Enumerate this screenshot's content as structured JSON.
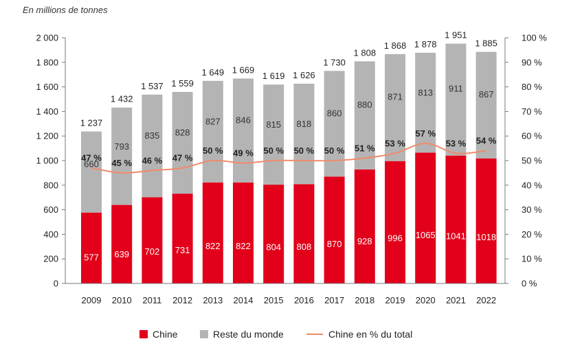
{
  "chart_data": {
    "type": "bar",
    "subtitle": "En millions de tonnes",
    "categories": [
      "2009",
      "2010",
      "2011",
      "2012",
      "2013",
      "2014",
      "2015",
      "2016",
      "2017",
      "2018",
      "2019",
      "2020",
      "2021",
      "2022"
    ],
    "series": [
      {
        "name": "Chine",
        "type": "bar",
        "stack": "main",
        "color": "#e2001a",
        "values": [
          577,
          639,
          702,
          731,
          822,
          822,
          804,
          808,
          870,
          928,
          996,
          1065,
          1041,
          1018
        ]
      },
      {
        "name": "Reste du monde",
        "type": "bar",
        "stack": "main",
        "color": "#b4b4b4",
        "values": [
          660,
          793,
          835,
          828,
          827,
          846,
          815,
          818,
          860,
          880,
          871,
          813,
          911,
          867
        ]
      },
      {
        "name": "Chine en % du total",
        "type": "line",
        "axis": "right",
        "color": "#f08a6a",
        "values": [
          47,
          45,
          46,
          47,
          50,
          49,
          50,
          50,
          50,
          51,
          53,
          57,
          53,
          54
        ]
      }
    ],
    "totals": [
      "1 237",
      "1 432",
      "1 537",
      "1 559",
      "1 649",
      "1 669",
      "1 619",
      "1 626",
      "1 730",
      "1 808",
      "1 868",
      "1 878",
      "1 951",
      "1 885"
    ],
    "pct_labels": [
      "47 %",
      "45 %",
      "46 %",
      "47 %",
      "50 %",
      "49 %",
      "50 %",
      "50 %",
      "50 %",
      "51 %",
      "53 %",
      "57 %",
      "53 %",
      "54 %"
    ],
    "y_left": {
      "min": 0,
      "max": 2000,
      "step": 200,
      "tick_labels": [
        "0",
        "200",
        "400",
        "600",
        "800",
        "1 000",
        "1 200",
        "1 400",
        "1 600",
        "1 800",
        "2 000"
      ]
    },
    "y_right": {
      "min": 0,
      "max": 100,
      "step": 10,
      "tick_labels": [
        "0 %",
        "10 %",
        "20 %",
        "30 %",
        "40 %",
        "50 %",
        "60 %",
        "70 %",
        "80 %",
        "90 %",
        "100 %"
      ]
    },
    "legend": {
      "position": "bottom",
      "entries": [
        "Chine",
        "Reste du monde",
        "Chine en % du total"
      ]
    }
  }
}
